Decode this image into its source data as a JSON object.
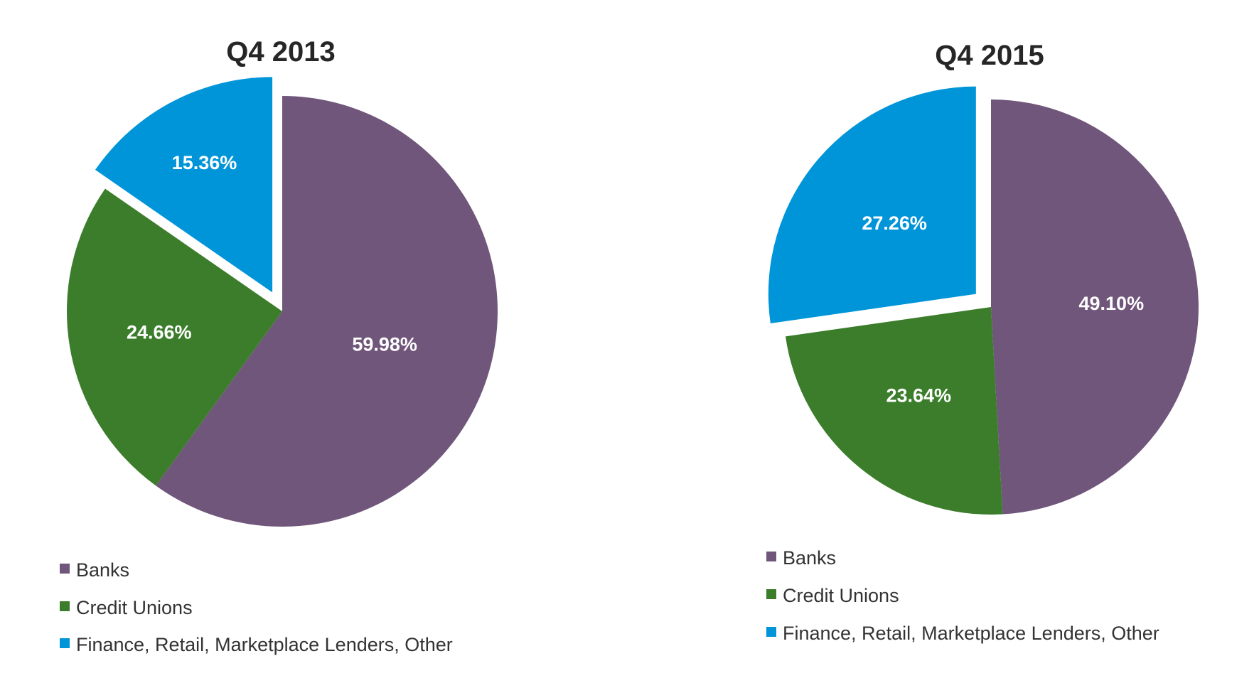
{
  "chart_data": [
    {
      "type": "pie",
      "title": "Q4 2013",
      "categories": [
        "Banks",
        "Credit Unions",
        "Finance, Retail, Marketplace Lenders, Other"
      ],
      "values": [
        59.98,
        24.66,
        15.36
      ],
      "labels": [
        "59.98%",
        "24.66%",
        "15.36%"
      ],
      "colors": [
        "#70567A",
        "#3B7D2B",
        "#0095D9"
      ],
      "exploded": [
        false,
        false,
        true
      ],
      "legend": "bottom-left"
    },
    {
      "type": "pie",
      "title": "Q4 2015",
      "categories": [
        "Banks",
        "Credit Unions",
        "Finance, Retail, Marketplace Lenders, Other"
      ],
      "values": [
        49.1,
        23.64,
        27.26
      ],
      "labels": [
        "49.10%",
        "23.64%",
        "27.26%"
      ],
      "colors": [
        "#70567A",
        "#3B7D2B",
        "#0095D9"
      ],
      "exploded": [
        false,
        false,
        true
      ],
      "legend": "bottom-left"
    }
  ]
}
